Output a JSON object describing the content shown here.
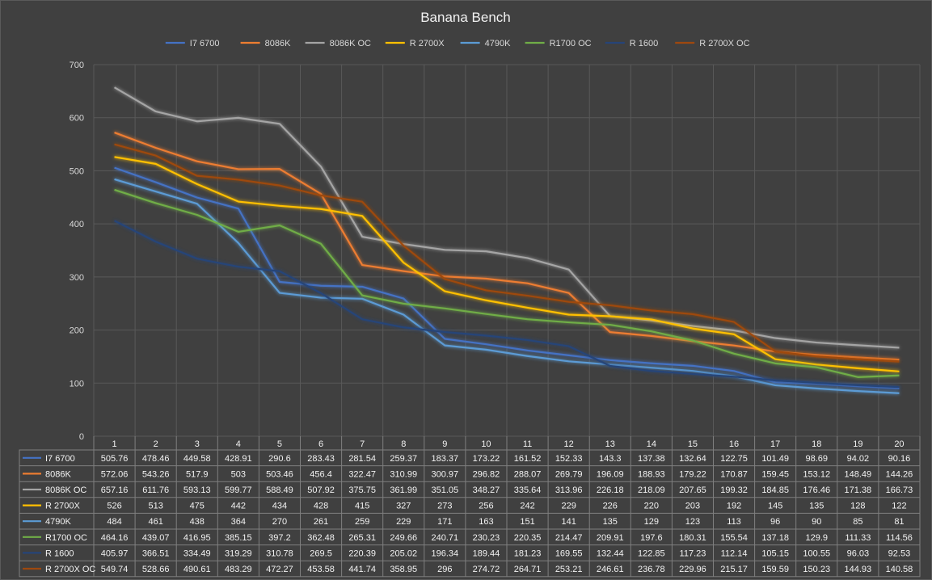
{
  "chart_data": {
    "type": "line",
    "title": "Banana Bench",
    "xlabel": "",
    "ylabel": "",
    "ylim": [
      0,
      700
    ],
    "yticks": [
      0,
      100,
      200,
      300,
      400,
      500,
      600,
      700
    ],
    "grid": true,
    "legend_position": "top",
    "data_table": true,
    "x": [
      "1",
      "2",
      "3",
      "4",
      "5",
      "6",
      "7",
      "8",
      "9",
      "10",
      "11",
      "12",
      "13",
      "14",
      "15",
      "16",
      "17",
      "18",
      "19",
      "20"
    ],
    "series": [
      {
        "name": "I7 6700",
        "color": "#4472c4",
        "values": [
          505.76,
          478.46,
          449.58,
          428.91,
          290.6,
          283.43,
          281.54,
          259.37,
          183.37,
          173.22,
          161.52,
          152.33,
          143.3,
          137.38,
          132.64,
          122.75,
          101.49,
          98.69,
          94.02,
          90.16
        ]
      },
      {
        "name": "8086K",
        "color": "#ed7d31",
        "values": [
          572.06,
          543.26,
          517.9,
          503,
          503.46,
          456.4,
          322.47,
          310.99,
          300.97,
          296.82,
          288.07,
          269.79,
          196.09,
          188.93,
          179.22,
          170.87,
          159.45,
          153.12,
          148.49,
          144.26
        ]
      },
      {
        "name": "8086K OC",
        "color": "#a5a5a5",
        "values": [
          657.16,
          611.76,
          593.13,
          599.77,
          588.49,
          507.92,
          375.75,
          361.99,
          351.05,
          348.27,
          335.64,
          313.96,
          226.18,
          218.09,
          207.65,
          199.32,
          184.85,
          176.46,
          171.38,
          166.73
        ]
      },
      {
        "name": "R 2700X",
        "color": "#ffc000",
        "values": [
          526,
          513,
          475,
          442,
          434,
          428,
          415,
          327,
          273,
          256,
          242,
          229,
          226,
          220,
          203,
          192,
          145,
          135,
          128,
          122
        ]
      },
      {
        "name": "4790K",
        "color": "#5b9bd5",
        "values": [
          484,
          461,
          438,
          364,
          270,
          261,
          259,
          229,
          171,
          163,
          151,
          141,
          135,
          129,
          123,
          113,
          96,
          90,
          85,
          81
        ]
      },
      {
        "name": "R1700 OC",
        "color": "#70ad47",
        "values": [
          464.16,
          439.07,
          416.95,
          385.15,
          397.2,
          362.48,
          265.31,
          249.66,
          240.71,
          230.23,
          220.35,
          214.47,
          209.91,
          197.6,
          180.31,
          155.54,
          137.18,
          129.9,
          111.33,
          114.56
        ]
      },
      {
        "name": "R 1600",
        "color": "#264478",
        "values": [
          405.97,
          366.51,
          334.49,
          319.29,
          310.78,
          269.5,
          220.39,
          205.02,
          196.34,
          189.44,
          181.23,
          169.55,
          132.44,
          122.85,
          117.23,
          112.14,
          105.15,
          100.55,
          96.03,
          92.53
        ]
      },
      {
        "name": "R 2700X OC",
        "color": "#9e480e",
        "values": [
          549.74,
          528.66,
          490.61,
          483.29,
          472.27,
          453.58,
          441.74,
          358.95,
          296,
          274.72,
          264.71,
          253.21,
          246.61,
          236.78,
          229.96,
          215.17,
          159.59,
          150.23,
          144.93,
          140.58
        ]
      }
    ]
  }
}
